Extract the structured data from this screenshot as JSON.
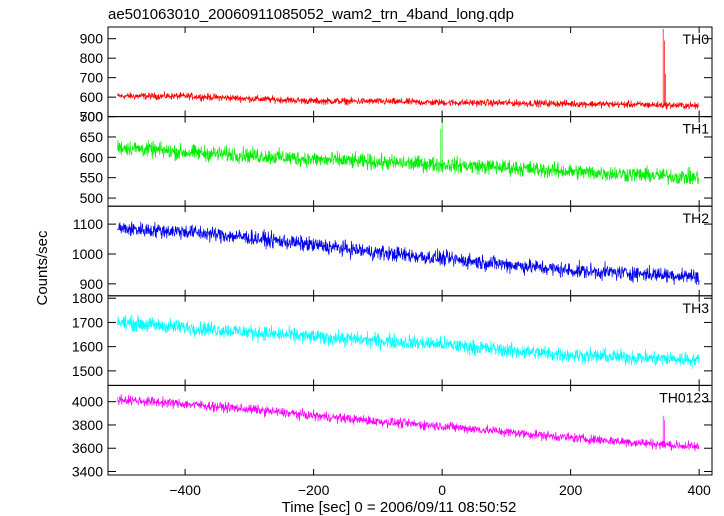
{
  "chart_data": {
    "type": "line",
    "title": "ae501063010_20060911085052_wam2_trn_4band_long.qdp",
    "xlabel": "Time [sec] 0 = 2006/09/11 08:50:52",
    "ylabel": "Counts/sec",
    "xlim": [
      -520,
      420
    ],
    "xticks": [
      -400,
      -200,
      0,
      200,
      400
    ],
    "xtick_labels": [
      "−400",
      "−200",
      "0",
      "200",
      "400"
    ],
    "data_range": [
      -505,
      400
    ],
    "grid": false,
    "legend": "none",
    "panels": [
      {
        "name": "TH0",
        "color": "#ff0000",
        "ylim": [
          500,
          960
        ],
        "yticks": [
          500,
          600,
          700,
          800,
          900
        ],
        "trend": [
          [
            -505,
            605
          ],
          [
            -400,
            605
          ],
          [
            -300,
            592
          ],
          [
            -200,
            580
          ],
          [
            -100,
            578
          ],
          [
            0,
            572
          ],
          [
            100,
            570
          ],
          [
            200,
            566
          ],
          [
            300,
            562
          ],
          [
            400,
            555
          ]
        ],
        "noise_amplitude": 28,
        "spikes": [
          [
            344,
            950
          ],
          [
            346,
            890
          ],
          [
            348,
            720
          ]
        ]
      },
      {
        "name": "TH1",
        "color": "#00ee00",
        "ylim": [
          480,
          700
        ],
        "yticks": [
          500,
          550,
          600,
          650,
          700
        ],
        "trend": [
          [
            -505,
            625
          ],
          [
            -400,
            612
          ],
          [
            -300,
            605
          ],
          [
            -200,
            595
          ],
          [
            -100,
            588
          ],
          [
            0,
            582
          ],
          [
            100,
            575
          ],
          [
            200,
            565
          ],
          [
            300,
            558
          ],
          [
            400,
            550
          ]
        ],
        "noise_amplitude": 30,
        "spikes": [
          [
            0,
            690
          ],
          [
            -2,
            670
          ]
        ]
      },
      {
        "name": "TH2",
        "color": "#0000ee",
        "ylim": [
          860,
          1160
        ],
        "yticks": [
          900,
          1000,
          1100
        ],
        "trend": [
          [
            -505,
            1085
          ],
          [
            -400,
            1075
          ],
          [
            -300,
            1055
          ],
          [
            -200,
            1030
          ],
          [
            -100,
            1005
          ],
          [
            0,
            985
          ],
          [
            100,
            965
          ],
          [
            200,
            945
          ],
          [
            300,
            935
          ],
          [
            400,
            925
          ]
        ],
        "noise_amplitude": 40,
        "spikes": []
      },
      {
        "name": "TH3",
        "color": "#00ffff",
        "ylim": [
          1440,
          1810
        ],
        "yticks": [
          1500,
          1600,
          1700,
          1800
        ],
        "trend": [
          [
            -505,
            1700
          ],
          [
            -400,
            1680
          ],
          [
            -300,
            1660
          ],
          [
            -200,
            1640
          ],
          [
            -100,
            1625
          ],
          [
            0,
            1610
          ],
          [
            100,
            1585
          ],
          [
            200,
            1565
          ],
          [
            300,
            1555
          ],
          [
            400,
            1545
          ]
        ],
        "noise_amplitude": 48,
        "spikes": []
      },
      {
        "name": "TH0123",
        "color": "#ff00ff",
        "ylim": [
          3370,
          4140
        ],
        "yticks": [
          3400,
          3600,
          3800,
          4000
        ],
        "trend": [
          [
            -505,
            4020
          ],
          [
            -400,
            3980
          ],
          [
            -300,
            3935
          ],
          [
            -200,
            3880
          ],
          [
            -100,
            3830
          ],
          [
            0,
            3790
          ],
          [
            100,
            3740
          ],
          [
            200,
            3690
          ],
          [
            300,
            3650
          ],
          [
            400,
            3610
          ]
        ],
        "noise_amplitude": 65,
        "spikes": [
          [
            344,
            3880
          ],
          [
            346,
            3840
          ]
        ]
      }
    ]
  }
}
